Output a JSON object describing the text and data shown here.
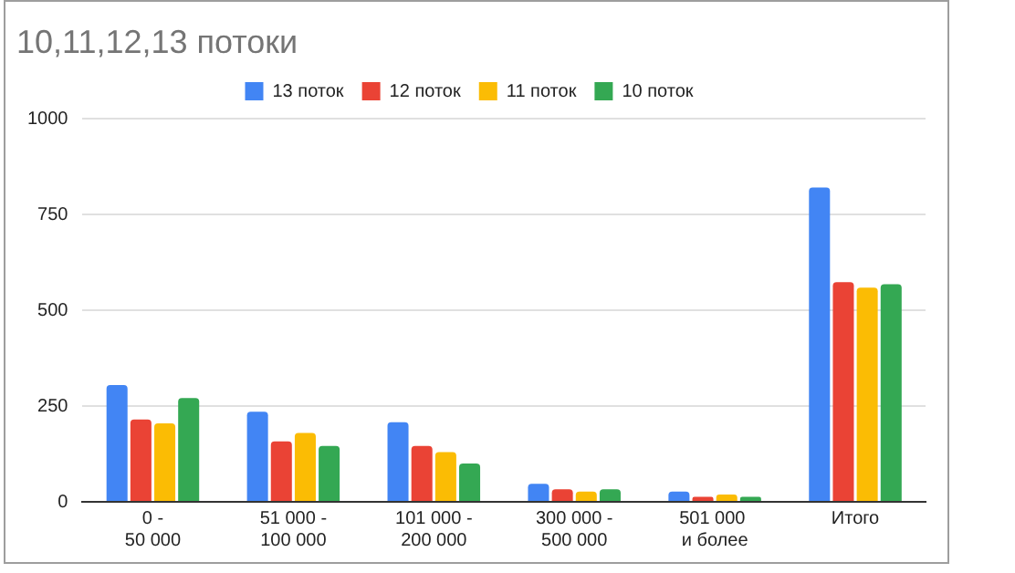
{
  "chart_data": {
    "type": "bar",
    "title": "10,11,12,13 потоки",
    "categories": [
      "0 - 50 000",
      "51 000 - 100 000",
      "101 000 - 200 000",
      "300 000 - 500 000",
      "501 000  и более",
      "Итого"
    ],
    "series": [
      {
        "name": "13 поток",
        "color": "#4285f4",
        "values": [
          305,
          235,
          208,
          47,
          27,
          820
        ]
      },
      {
        "name": "12 поток",
        "color": "#ea4335",
        "values": [
          215,
          158,
          146,
          33,
          13,
          573
        ]
      },
      {
        "name": "11 поток",
        "color": "#fbbc04",
        "values": [
          205,
          180,
          130,
          27,
          19,
          559
        ]
      },
      {
        "name": "10 поток",
        "color": "#34a853",
        "values": [
          271,
          146,
          100,
          33,
          13,
          568
        ]
      }
    ],
    "ylim": [
      0,
      1000
    ],
    "yticks": [
      0,
      250,
      500,
      750,
      1000
    ],
    "grid": "y",
    "legend": "top"
  }
}
